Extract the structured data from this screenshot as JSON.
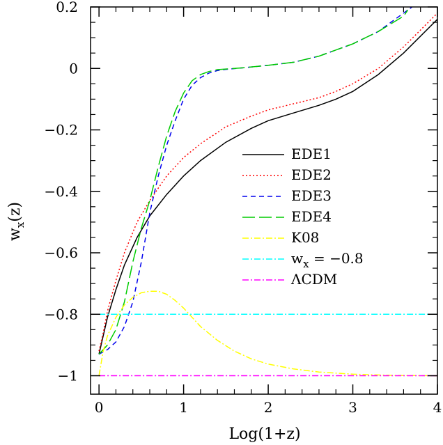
{
  "chart_data": {
    "type": "line",
    "xlabel": "Log(1+z)",
    "ylabel_base": "w",
    "ylabel_sub": "x",
    "ylabel_suffix": "(z)",
    "xlim": [
      -0.1,
      4.0
    ],
    "ylim": [
      -1.06,
      0.2
    ],
    "x_ticks": [
      0,
      1,
      2,
      3,
      4
    ],
    "x_tick_labels": [
      "0",
      "1",
      "2",
      "3",
      "4"
    ],
    "y_ticks": [
      -1,
      -0.8,
      -0.6,
      -0.4,
      -0.2,
      0,
      0.2
    ],
    "y_tick_labels": [
      "−1",
      "−0.8",
      "−0.6",
      "−0.4",
      "−0.2",
      "0",
      "0.2"
    ],
    "grid": false,
    "legend_position": "center-right",
    "series": [
      {
        "name": "EDE1",
        "color": "#000000",
        "dash": "",
        "x": [
          0,
          0.05,
          0.1,
          0.2,
          0.3,
          0.45,
          0.6,
          0.8,
          1.0,
          1.2,
          1.5,
          1.8,
          2.0,
          2.3,
          2.6,
          2.8,
          3.0,
          3.3,
          3.6,
          4.0
        ],
        "y": [
          -0.93,
          -0.87,
          -0.81,
          -0.72,
          -0.64,
          -0.55,
          -0.48,
          -0.41,
          -0.35,
          -0.3,
          -0.24,
          -0.195,
          -0.17,
          -0.145,
          -0.12,
          -0.1,
          -0.075,
          -0.02,
          0.05,
          0.16
        ]
      },
      {
        "name": "EDE2",
        "color": "#ff0000",
        "dash": "2 3",
        "x": [
          0,
          0.05,
          0.1,
          0.2,
          0.3,
          0.45,
          0.6,
          0.8,
          1.0,
          1.2,
          1.5,
          1.8,
          2.0,
          2.3,
          2.6,
          2.8,
          3.0,
          3.3,
          3.6,
          4.0
        ],
        "y": [
          -0.92,
          -0.86,
          -0.79,
          -0.69,
          -0.6,
          -0.5,
          -0.43,
          -0.35,
          -0.29,
          -0.245,
          -0.19,
          -0.155,
          -0.135,
          -0.115,
          -0.095,
          -0.075,
          -0.05,
          0.0,
          0.07,
          0.18
        ]
      },
      {
        "name": "EDE3",
        "color": "#0000ee",
        "dash": "7 5",
        "x": [
          0,
          0.1,
          0.2,
          0.3,
          0.4,
          0.5,
          0.6,
          0.7,
          0.8,
          0.9,
          1.0,
          1.1,
          1.2,
          1.3,
          1.4,
          1.5,
          1.7,
          2.0,
          2.3,
          2.6,
          3.0,
          3.3,
          3.6,
          3.7
        ],
        "y": [
          -0.93,
          -0.915,
          -0.89,
          -0.84,
          -0.76,
          -0.63,
          -0.47,
          -0.35,
          -0.25,
          -0.17,
          -0.1,
          -0.055,
          -0.03,
          -0.015,
          -0.007,
          -0.003,
          0.002,
          0.01,
          0.02,
          0.04,
          0.08,
          0.12,
          0.18,
          0.2
        ]
      },
      {
        "name": "EDE4",
        "color": "#00cc00",
        "dash": "18 6",
        "x": [
          0,
          0.1,
          0.2,
          0.3,
          0.4,
          0.5,
          0.6,
          0.7,
          0.8,
          0.9,
          1.0,
          1.1,
          1.2,
          1.3,
          1.4,
          1.5,
          1.7,
          2.0,
          2.3,
          2.6,
          3.0,
          3.3,
          3.6,
          3.65
        ],
        "y": [
          -0.93,
          -0.9,
          -0.85,
          -0.76,
          -0.63,
          -0.52,
          -0.43,
          -0.32,
          -0.22,
          -0.14,
          -0.08,
          -0.04,
          -0.02,
          -0.01,
          -0.004,
          -0.002,
          0.002,
          0.01,
          0.02,
          0.04,
          0.08,
          0.12,
          0.17,
          0.19
        ]
      },
      {
        "name": "K08",
        "color": "#ffff00",
        "dash": "9 3 2 3",
        "x": [
          0,
          0.05,
          0.1,
          0.2,
          0.3,
          0.4,
          0.5,
          0.6,
          0.7,
          0.8,
          0.9,
          1.0,
          1.1,
          1.2,
          1.4,
          1.6,
          1.8,
          2.0,
          2.3,
          2.6,
          3.0,
          3.5,
          4.0
        ],
        "y": [
          -1.0,
          -0.92,
          -0.87,
          -0.81,
          -0.77,
          -0.745,
          -0.73,
          -0.725,
          -0.725,
          -0.735,
          -0.755,
          -0.78,
          -0.81,
          -0.84,
          -0.885,
          -0.92,
          -0.945,
          -0.962,
          -0.978,
          -0.988,
          -0.995,
          -0.999,
          -1.0
        ]
      },
      {
        "name": "w",
        "label_sub": "x",
        "label_suffix": " = −0.8",
        "color": "#00ffff",
        "dash": "9 3 2 3",
        "x": [
          0,
          4.0
        ],
        "y": [
          -0.8,
          -0.8
        ]
      },
      {
        "name": "ΛCDM",
        "color": "#ff00ff",
        "dash": "9 3 2 3",
        "x": [
          0,
          4.0
        ],
        "y": [
          -1.0,
          -1.0
        ]
      }
    ]
  }
}
